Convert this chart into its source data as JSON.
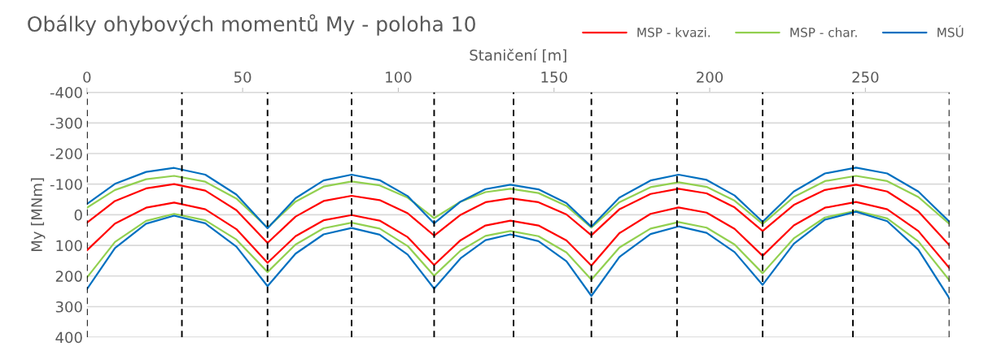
{
  "chart_data": {
    "type": "line",
    "title": "Obálky ohybových momentů My - poloha 10",
    "xlabel": "Staničení [m]",
    "ylabel": "My [MNm]",
    "x": [
      0,
      9,
      19,
      28,
      38,
      48,
      58,
      67,
      76,
      85,
      94,
      103,
      111.5,
      120,
      128,
      136,
      145,
      154,
      162,
      171,
      181,
      190,
      199,
      208,
      217,
      227,
      237,
      247,
      257,
      267,
      277
    ],
    "series": [
      {
        "name": "MSP - kvazi.",
        "color": "#ff0000",
        "values": [
          26,
          -45,
          -86,
          -100,
          -79,
          -15,
          92,
          6,
          -45,
          -62,
          -48,
          -5,
          68,
          0,
          -41,
          -54,
          -41,
          -1,
          67,
          -18,
          -68,
          -85,
          -70,
          -24,
          53,
          -32,
          -81,
          -98,
          -76,
          -11,
          100
        ]
      },
      {
        "color": "#ff0000",
        "values": [
          116,
          29,
          -23,
          -40,
          -18,
          47,
          157,
          70,
          18,
          1,
          19,
          73,
          164,
          83,
          35,
          19,
          35,
          84,
          166,
          60,
          -3,
          -24,
          -7,
          46,
          134,
          35,
          -23,
          -42,
          -18,
          53,
          174
        ]
      },
      {
        "name": "MSP - char.",
        "color": "#92d050",
        "values": [
          -23,
          -81,
          -116,
          -127,
          -108,
          -53,
          42,
          -43,
          -92,
          -109,
          -96,
          -56,
          11,
          -43,
          -74,
          -85,
          -71,
          -29,
          42,
          -41,
          -90,
          -106,
          -91,
          -46,
          30,
          -58,
          -110,
          -127,
          -110,
          -58,
          30
        ]
      },
      {
        "color": "#92d050",
        "values": [
          205,
          89,
          20,
          -3,
          18,
          81,
          187,
          97,
          44,
          26,
          45,
          102,
          199,
          117,
          69,
          53,
          70,
          123,
          212,
          107,
          45,
          24,
          42,
          97,
          191,
          77,
          9,
          -13,
          12,
          87,
          214
        ]
      },
      {
        "name": "MSÚ",
        "color": "#0070c0",
        "values": [
          -35,
          -101,
          -140,
          -153,
          -131,
          -66,
          44,
          -54,
          -112,
          -131,
          -113,
          -61,
          28,
          -43,
          -84,
          -98,
          -83,
          -38,
          39,
          -56,
          -112,
          -131,
          -114,
          -63,
          23,
          -76,
          -135,
          -154,
          -135,
          -76,
          23
        ]
      },
      {
        "color": "#0070c0",
        "values": [
          243,
          109,
          29,
          3,
          28,
          104,
          233,
          127,
          64,
          43,
          65,
          130,
          241,
          142,
          83,
          64,
          86,
          152,
          265,
          138,
          63,
          38,
          59,
          122,
          229,
          95,
          16,
          -10,
          21,
          114,
          273
        ]
      }
    ],
    "xlim": [
      0,
      277
    ],
    "xticks": [
      0,
      50,
      100,
      150,
      200,
      250
    ],
    "ylim": [
      400,
      -400
    ],
    "yticks": [
      -400,
      -300,
      -200,
      -100,
      0,
      100,
      200,
      300,
      400
    ],
    "ref_lines": [
      {
        "axis": "x",
        "value": 0,
        "color": "#000000",
        "line_style": "dashed"
      },
      {
        "axis": "x",
        "value": 30.5,
        "color": "#000000",
        "line_style": "dashed"
      },
      {
        "axis": "x",
        "value": 58,
        "color": "#000000",
        "line_style": "dashed"
      },
      {
        "axis": "x",
        "value": 85,
        "color": "#000000",
        "line_style": "dashed"
      },
      {
        "axis": "x",
        "value": 111.5,
        "color": "#000000",
        "line_style": "dashed"
      },
      {
        "axis": "x",
        "value": 137,
        "color": "#000000",
        "line_style": "dashed"
      },
      {
        "axis": "x",
        "value": 162,
        "color": "#000000",
        "line_style": "dashed"
      },
      {
        "axis": "x",
        "value": 189.5,
        "color": "#000000",
        "line_style": "dashed"
      },
      {
        "axis": "x",
        "value": 217,
        "color": "#000000",
        "line_style": "dashed"
      },
      {
        "axis": "x",
        "value": 246,
        "color": "#000000",
        "line_style": "dashed"
      },
      {
        "axis": "x",
        "value": 277,
        "color": "#000000",
        "line_style": "dashed"
      }
    ],
    "grid": "y",
    "legend": "top right",
    "marker": "none",
    "line_style": "solid"
  }
}
